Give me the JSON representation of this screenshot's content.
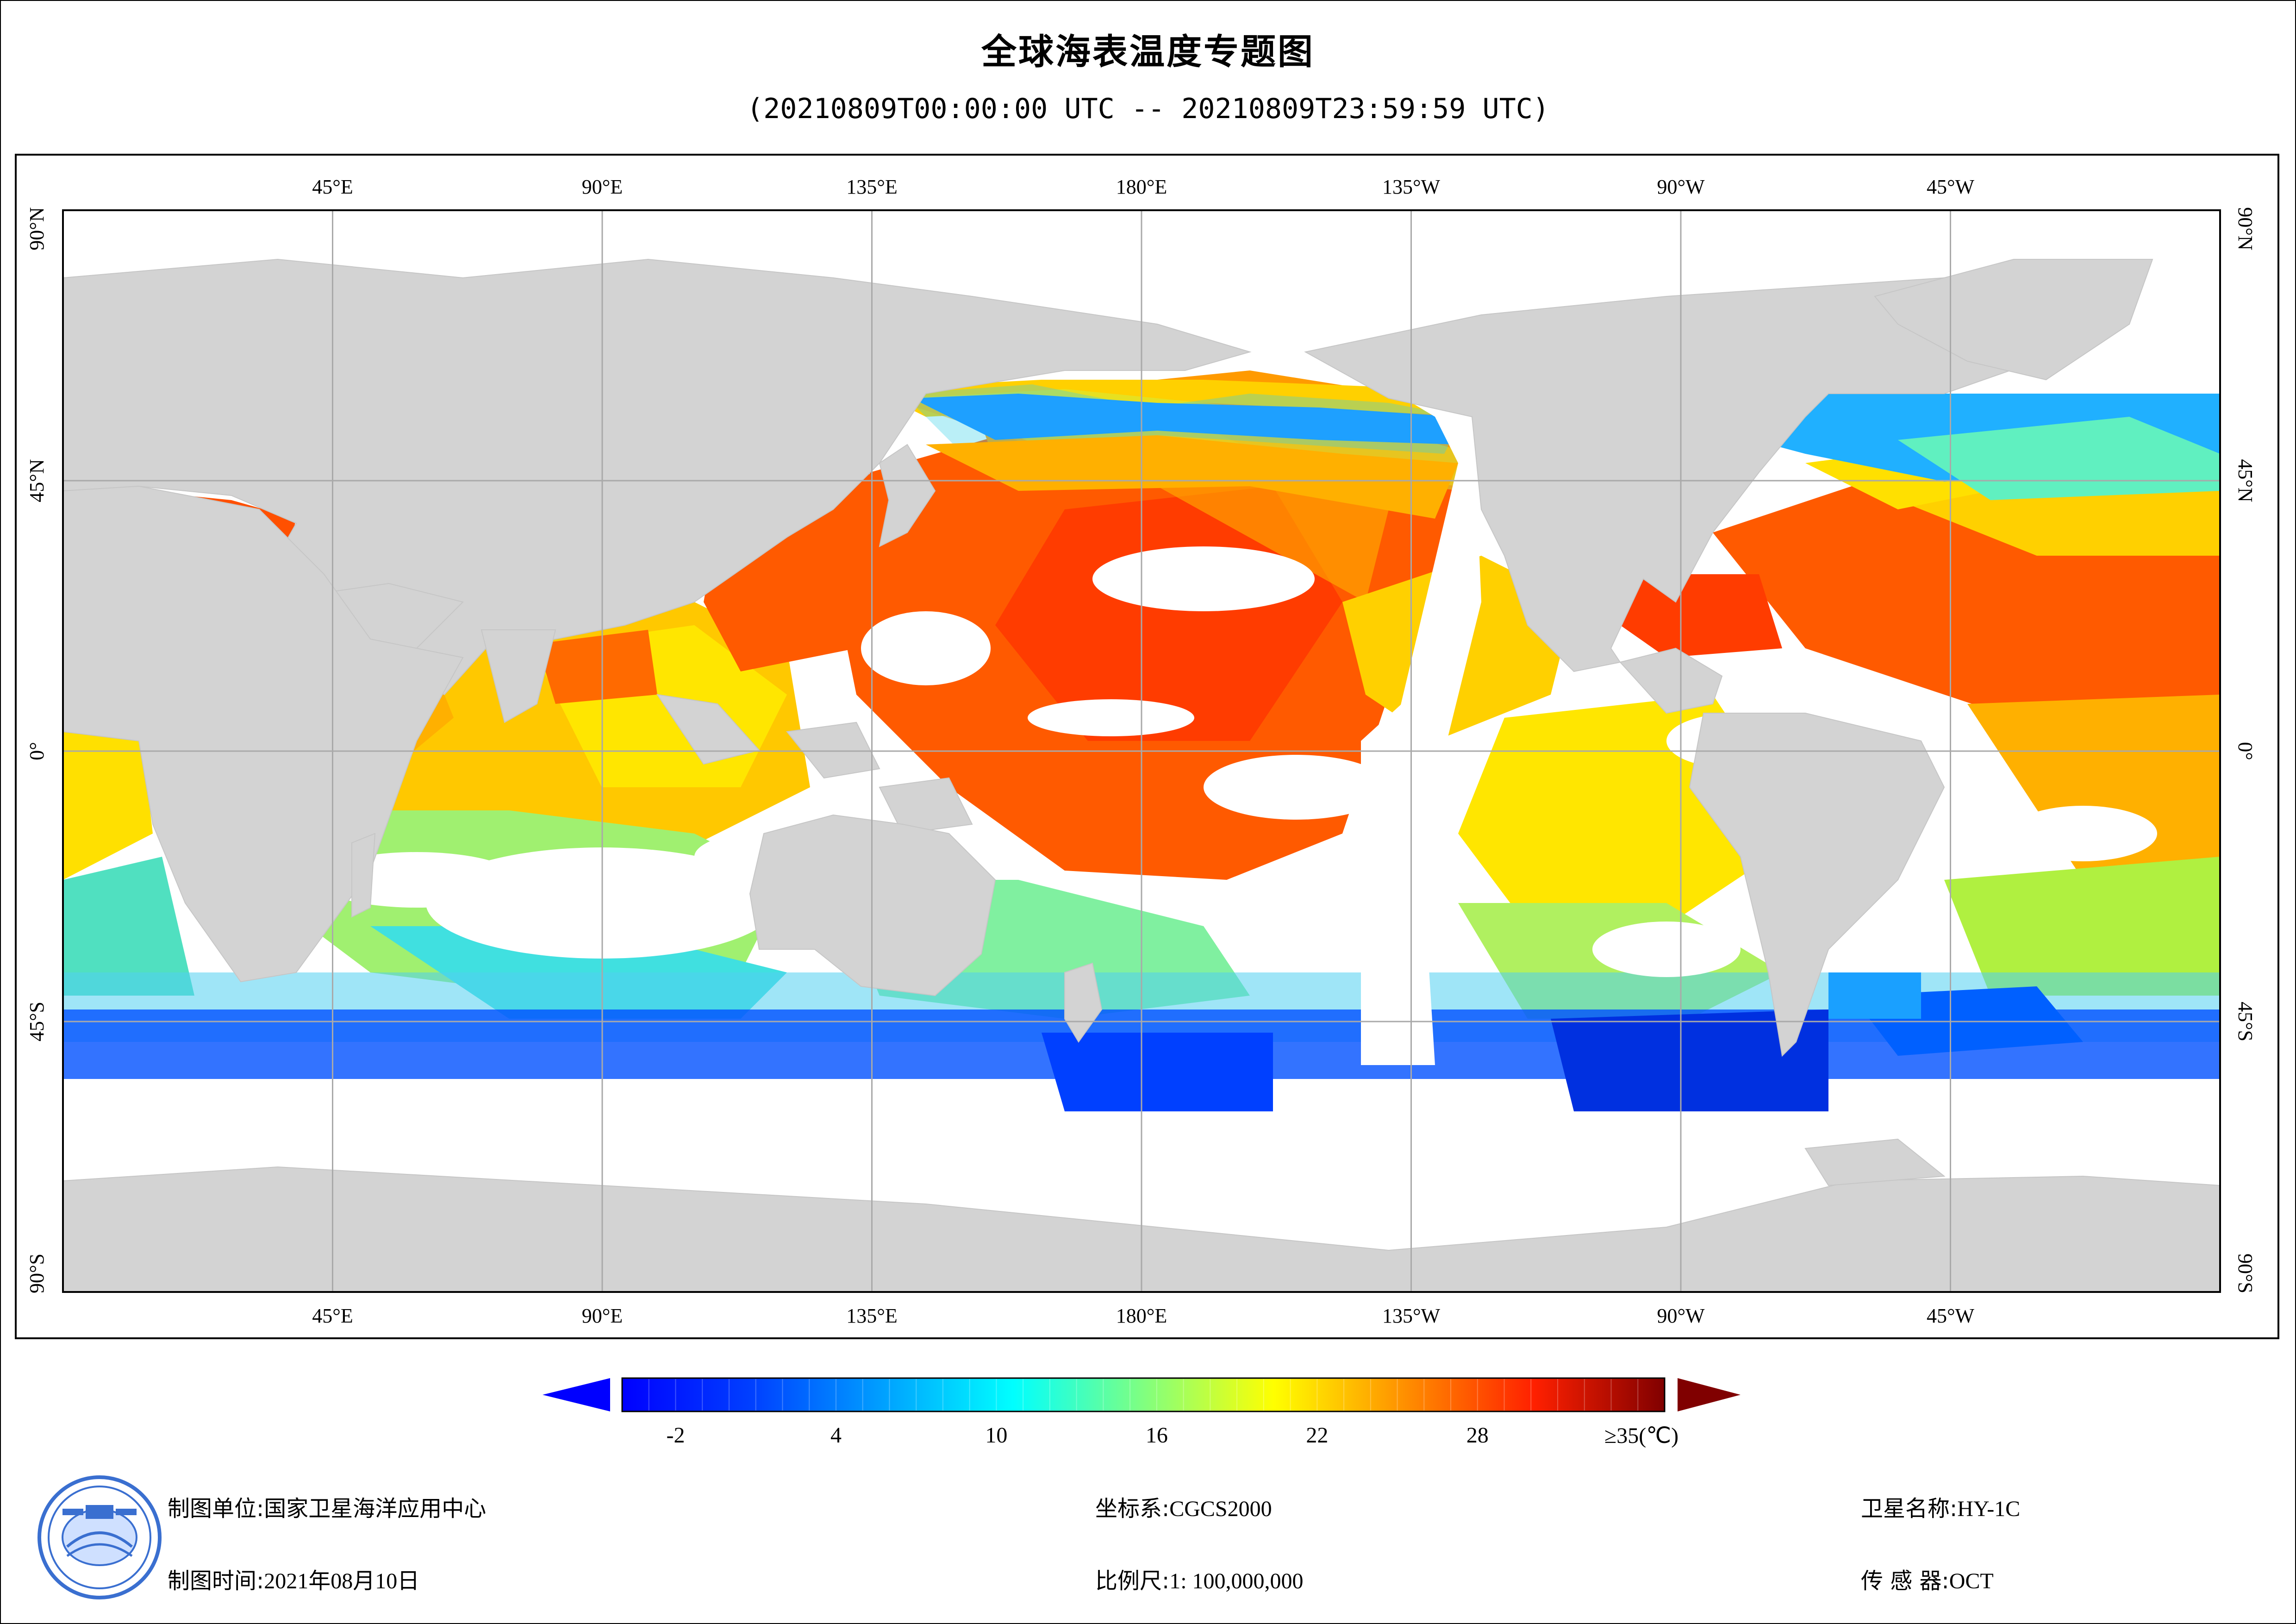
{
  "title": "全球海表温度专题图",
  "subtitle": "(20210809T00:00:00 UTC -- 20210809T23:59:59 UTC)",
  "map": {
    "projection": "equirectangular, centered 180°E",
    "lon_top_labels": [
      "45°E",
      "90°E",
      "135°E",
      "180°E",
      "135°W",
      "90°W",
      "45°W"
    ],
    "lat_labels": [
      "90°N",
      "45°N",
      "0°",
      "45°S",
      "90°S"
    ],
    "land_color": "#d3d3d3",
    "nodata_color": "#ffffff",
    "grid_color": "#a9a9a9"
  },
  "colorbar": {
    "colormap": "jet",
    "min": -4,
    "max": 35,
    "tick_labels": [
      "-2",
      "4",
      "10",
      "16",
      "22",
      "28",
      "≥35(℃)"
    ],
    "tick_values": [
      -2,
      4,
      10,
      16,
      22,
      28,
      35
    ],
    "under_color": "#0000ff",
    "over_color": "#800000"
  },
  "meta": {
    "unit_label": "制图单位:",
    "unit_value": "国家卫星海洋应用中心",
    "time_label": "制图时间:",
    "time_value": "2021年08月10日",
    "crs_label": "坐标系:",
    "crs_value": "CGCS2000",
    "scale_label": "比例尺:",
    "scale_value": "1: 100,000,000",
    "sat_label": "卫星名称:",
    "sat_value": "HY-1C",
    "sensor_label": "传 感 器:",
    "sensor_value": "OCT"
  }
}
